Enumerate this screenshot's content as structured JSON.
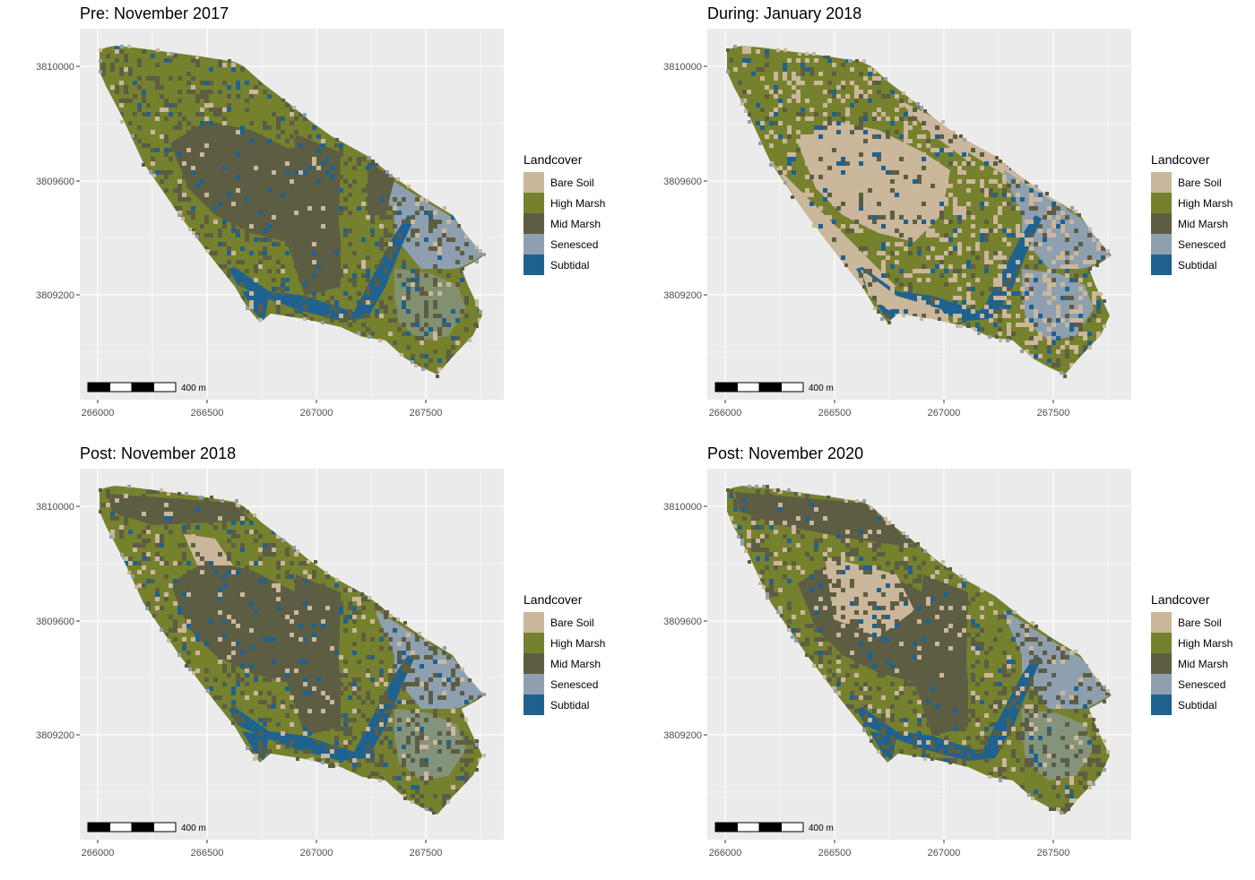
{
  "panels": [
    {
      "title": "Pre: November 2017",
      "scalebar_label": "400 m"
    },
    {
      "title": "During: January 2018",
      "scalebar_label": "400 m"
    },
    {
      "title": "Post: November 2018",
      "scalebar_label": "400 m"
    },
    {
      "title": "Post: November 2020",
      "scalebar_label": "400 m"
    }
  ],
  "x_ticks": [
    "266000",
    "266500",
    "267000",
    "267500"
  ],
  "y_ticks": [
    "3810000",
    "3809600",
    "3809200"
  ],
  "legend": {
    "title": "Landcover",
    "items": [
      {
        "label": "Bare Soil",
        "color": "#cbb79b"
      },
      {
        "label": "High Marsh",
        "color": "#76812e"
      },
      {
        "label": "Mid Marsh",
        "color": "#5c5d43"
      },
      {
        "label": "Senesced",
        "color": "#8ea0b0"
      },
      {
        "label": "Subtidal",
        "color": "#1f628f"
      }
    ]
  },
  "colors": {
    "panel_background": "#ebebeb",
    "grid": "#ffffff",
    "axis_text": "#4d4d4d"
  }
}
